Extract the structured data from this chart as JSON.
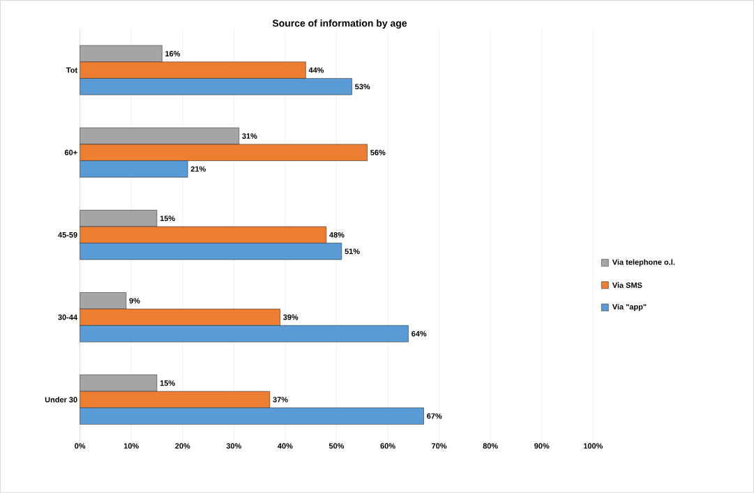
{
  "chart_data": {
    "type": "bar",
    "orientation": "horizontal",
    "title": "Source of information by age",
    "categories": [
      "Tot",
      "60+",
      "45-59",
      "30-44",
      "Under 30"
    ],
    "series": [
      {
        "name": "Via  telephone o.l.",
        "color": "#a5a5a5",
        "values": [
          16,
          31,
          15,
          9,
          15
        ],
        "value_labels": [
          "16%",
          "31%",
          "15%",
          "9%",
          "15%"
        ]
      },
      {
        "name": "Via SMS",
        "color": "#ed7d31",
        "values": [
          44,
          56,
          48,
          39,
          37
        ],
        "value_labels": [
          "44%",
          "56%",
          "48%",
          "39%",
          "37%"
        ]
      },
      {
        "name": "Via \"app\"",
        "color": "#5b9bd5",
        "values": [
          53,
          21,
          51,
          64,
          67
        ],
        "value_labels": [
          "53%",
          "21%",
          "51%",
          "64%",
          "67%"
        ]
      }
    ],
    "xlim": [
      0,
      100
    ],
    "xticks": [
      {
        "value": 0,
        "label": "0%"
      },
      {
        "value": 10,
        "label": "10%"
      },
      {
        "value": 20,
        "label": "20%"
      },
      {
        "value": 30,
        "label": "30%"
      },
      {
        "value": 40,
        "label": "40%"
      },
      {
        "value": 50,
        "label": "50%"
      },
      {
        "value": 60,
        "label": "60%"
      },
      {
        "value": 70,
        "label": "70%"
      },
      {
        "value": 80,
        "label": "80%"
      },
      {
        "value": 90,
        "label": "90%"
      },
      {
        "value": 100,
        "label": "100%"
      }
    ],
    "grid": "x",
    "legend": "right"
  }
}
